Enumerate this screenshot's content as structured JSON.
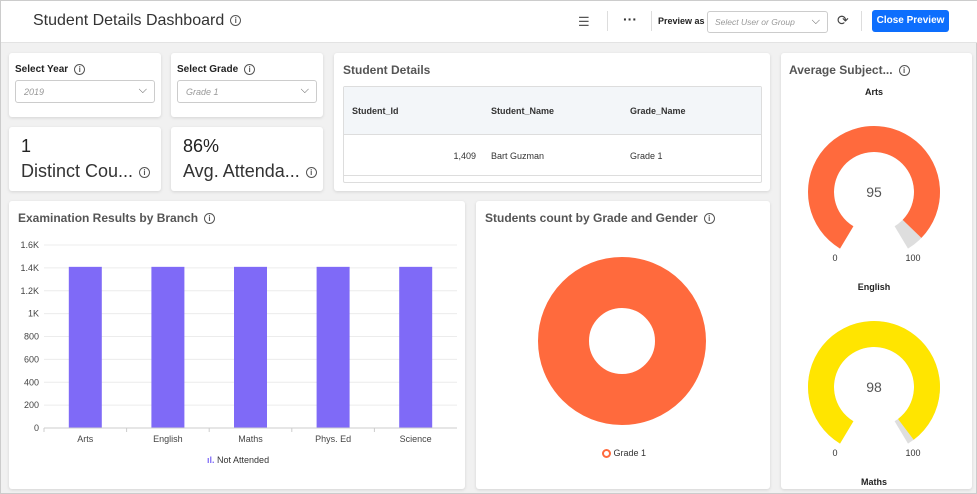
{
  "header": {
    "title": "Student Details Dashboard",
    "preview_as_label": "Preview as",
    "user_select_placeholder": "Select User or Group",
    "close_preview": "Close Preview",
    "accent": "#0d6efd"
  },
  "filters": {
    "year": {
      "label": "Select Year",
      "value": "2019"
    },
    "grade": {
      "label": "Select Grade",
      "value": "Grade 1"
    }
  },
  "kpis": [
    {
      "value": "1",
      "label": "Distinct Cou..."
    },
    {
      "value": "86%",
      "label": "Avg. Attenda..."
    }
  ],
  "student_details": {
    "title": "Student Details",
    "columns": [
      "Student_Id",
      "Student_Name",
      "Grade_Name"
    ],
    "rows": [
      [
        "1,409",
        "Bart Guzman",
        "Grade 1"
      ]
    ]
  },
  "chart_data": [
    {
      "type": "bar",
      "title": "Examination Results by Branch",
      "categories": [
        "Arts",
        "English",
        "Maths",
        "Phys. Ed",
        "Science"
      ],
      "series": [
        {
          "name": "Not Attended",
          "values": [
            1409,
            1409,
            1409,
            1409,
            1409
          ],
          "color": "#7f6af7"
        }
      ],
      "ylim": [
        0,
        1600
      ],
      "yticks": [
        "0",
        "200",
        "400",
        "600",
        "800",
        "1K",
        "1.2K",
        "1.4K",
        "1.6K"
      ],
      "grid": true,
      "legend": "bottom"
    },
    {
      "type": "pie",
      "title": "Students count by Grade and Gender",
      "donut": true,
      "categories": [
        "Grade 1"
      ],
      "values": [
        1
      ],
      "colors": [
        "#ff6a3d"
      ],
      "legend": "bottom"
    },
    {
      "type": "gauge",
      "title": "Average Subject...",
      "gauges": [
        {
          "label": "Arts",
          "value": 95,
          "min": "0",
          "max": "100",
          "color": "#ff6a3d"
        },
        {
          "label": "English",
          "value": 98,
          "min": "0",
          "max": "100",
          "color": "#ffe500"
        },
        {
          "label": "Maths"
        }
      ]
    }
  ]
}
